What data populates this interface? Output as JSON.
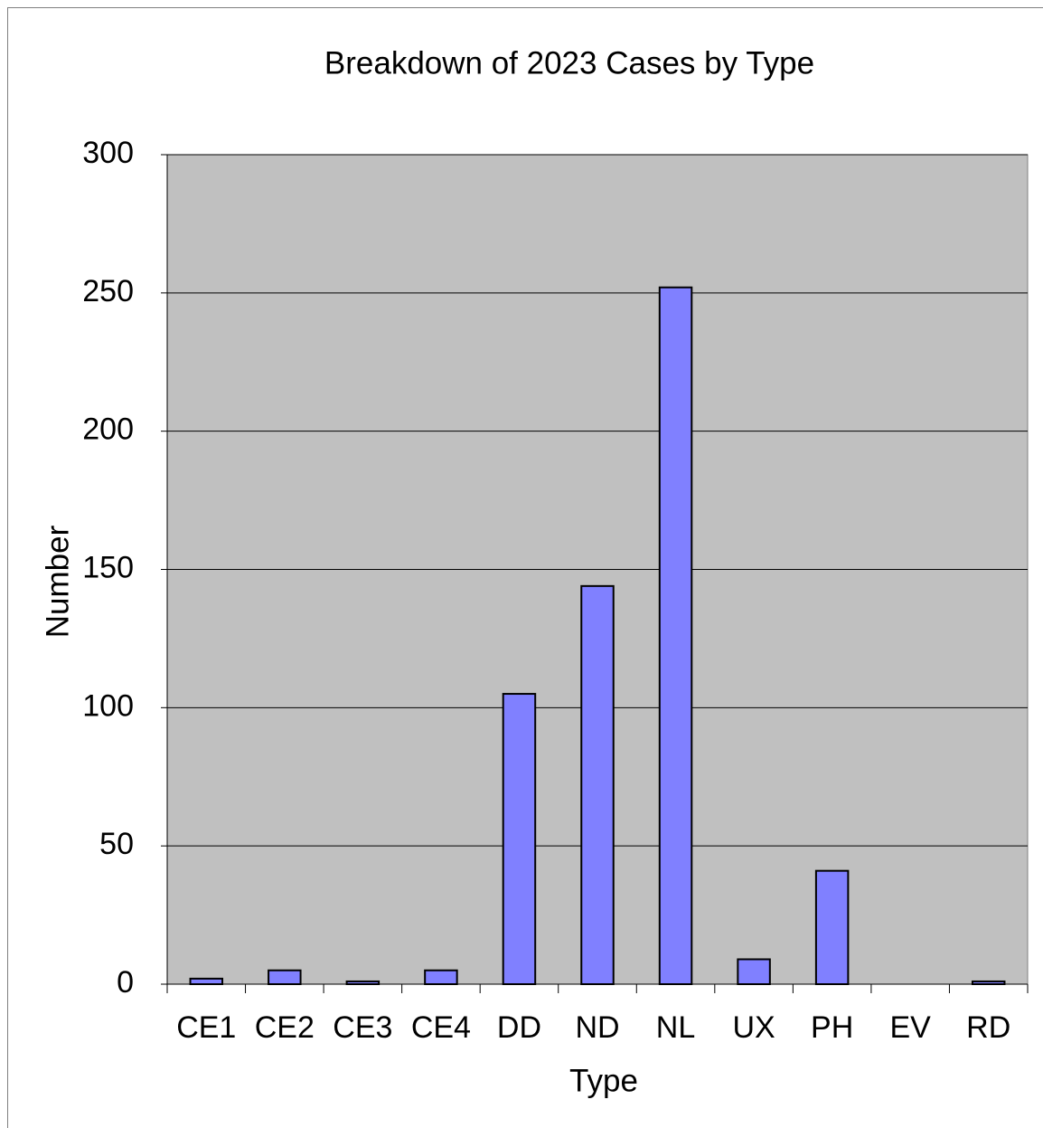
{
  "chart_data": {
    "type": "bar",
    "title": "Breakdown of 2023 Cases by Type",
    "x_label": "Type",
    "y_label": "Number",
    "categories": [
      "CE1",
      "CE2",
      "CE3",
      "CE4",
      "DD",
      "ND",
      "NL",
      "UX",
      "PH",
      "EV",
      "RD"
    ],
    "values": [
      2,
      5,
      1,
      5,
      105,
      144,
      252,
      9,
      41,
      0,
      1
    ],
    "color": "#8080ff",
    "ylim": [
      0,
      300
    ],
    "yticks": [
      0,
      50,
      100,
      150,
      200,
      250,
      300
    ],
    "grid": true
  }
}
